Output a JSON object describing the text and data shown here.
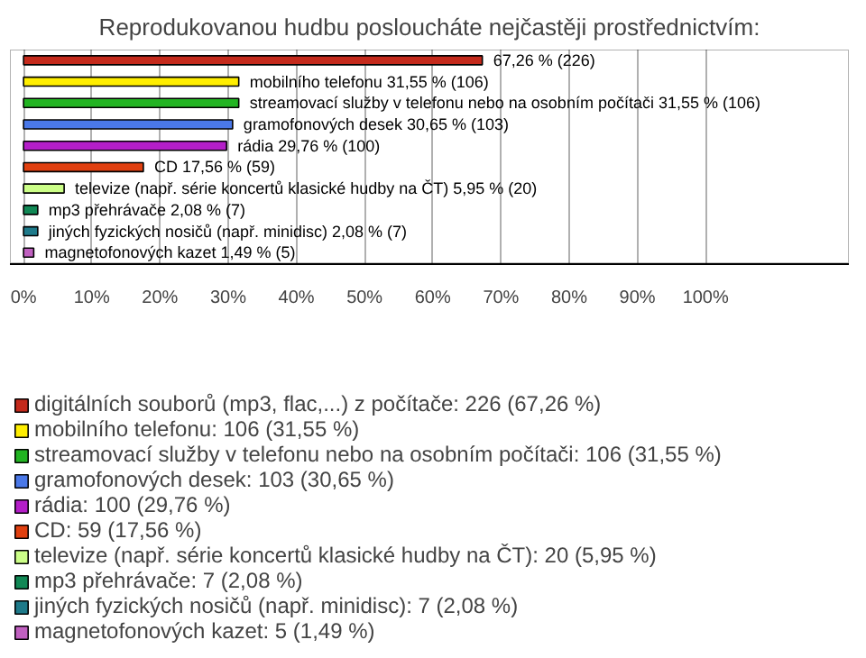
{
  "chart_data": {
    "type": "bar",
    "orientation": "horizontal",
    "title": "Reprodukovanou hudbu posloucháte nejčastěji prostřednictvím:",
    "categories": [
      null,
      null,
      null,
      null,
      null,
      null,
      null,
      null,
      null,
      null
    ],
    "series": [
      {
        "name": "digitálních souborů (mp3, flac,...) z počítače: 226 (67,26 %)",
        "color": "#c42a1c",
        "values": [
          67.26,
          null,
          null,
          null,
          null,
          null,
          null,
          null,
          null,
          null
        ],
        "value_labels": [
          "67,26 % (226)",
          null,
          null,
          null,
          null,
          null,
          null,
          null,
          null,
          null
        ]
      },
      {
        "name": "mobilního telefonu: 106 (31,55 %)",
        "color": "#ffee00",
        "values": [
          null,
          31.55,
          null,
          null,
          null,
          null,
          null,
          null,
          null,
          null
        ],
        "value_labels": [
          null,
          "mobilního telefonu 31,55 % (106)",
          null,
          null,
          null,
          null,
          null,
          null,
          null,
          null
        ]
      },
      {
        "name": "streamovací služby v telefonu nebo na osobním počítači: 106 (31,55 %)",
        "color": "#22b422",
        "values": [
          null,
          null,
          31.55,
          null,
          null,
          null,
          null,
          null,
          null,
          null
        ],
        "value_labels": [
          null,
          null,
          "streamovací služby v telefonu nebo na osobním počítači 31,55 % (106)",
          null,
          null,
          null,
          null,
          null,
          null,
          null
        ]
      },
      {
        "name": "gramofonových desek: 103 (30,65 %)",
        "color": "#4a78e8",
        "values": [
          null,
          null,
          null,
          30.65,
          null,
          null,
          null,
          null,
          null,
          null
        ],
        "value_labels": [
          null,
          null,
          null,
          "gramofonových desek 30,65 % (103)",
          null,
          null,
          null,
          null,
          null,
          null
        ]
      },
      {
        "name": "rádia: 100 (29,76 %)",
        "color": "#b41ec8",
        "values": [
          null,
          null,
          null,
          null,
          29.76,
          null,
          null,
          null,
          null,
          null
        ],
        "value_labels": [
          null,
          null,
          null,
          null,
          "rádia 29,76 % (100)",
          null,
          null,
          null,
          null,
          null
        ]
      },
      {
        "name": "CD: 59 (17,56 %)",
        "color": "#e04010",
        "values": [
          null,
          null,
          null,
          null,
          null,
          17.56,
          null,
          null,
          null,
          null
        ],
        "value_labels": [
          null,
          null,
          null,
          null,
          null,
          "CD 17,56 % (59)",
          null,
          null,
          null,
          null
        ]
      },
      {
        "name": "televize (např. série koncertů klasické hudby na ČT): 20 (5,95 %)",
        "color": "#ccff88",
        "values": [
          null,
          null,
          null,
          null,
          null,
          null,
          5.95,
          null,
          null,
          null
        ],
        "value_labels": [
          null,
          null,
          null,
          null,
          null,
          null,
          "televize (např. série koncertů klasické hudby na ČT) 5,95 % (20)",
          null,
          null,
          null
        ]
      },
      {
        "name": "mp3 přehrávače: 7 (2,08 %)",
        "color": "#118855",
        "values": [
          null,
          null,
          null,
          null,
          null,
          null,
          null,
          2.08,
          null,
          null
        ],
        "value_labels": [
          null,
          null,
          null,
          null,
          null,
          null,
          null,
          "mp3 přehrávače 2,08 % (7)",
          null,
          null
        ]
      },
      {
        "name": "jiných fyzických nosičů (např. minidisc): 7 (2,08 %)",
        "color": "#1e7a8a",
        "values": [
          null,
          null,
          null,
          null,
          null,
          null,
          null,
          null,
          2.08,
          null
        ],
        "value_labels": [
          null,
          null,
          null,
          null,
          null,
          null,
          null,
          null,
          "jiných fyzických nosičů (např. minidisc) 2,08 % (7)",
          null
        ]
      },
      {
        "name": "magnetofonových kazet: 5 (1,49 %)",
        "color": "#c060c0",
        "values": [
          null,
          null,
          null,
          null,
          null,
          null,
          null,
          null,
          null,
          1.49
        ],
        "value_labels": [
          null,
          null,
          null,
          null,
          null,
          null,
          null,
          null,
          null,
          "magnetofonových kazet 1,49 % (5)"
        ]
      }
    ],
    "xlim": [
      -2,
      121
    ],
    "xticks": [
      {
        "value": 0,
        "label": "0%"
      },
      {
        "value": 10,
        "label": "10%"
      },
      {
        "value": 20,
        "label": "20%"
      },
      {
        "value": 30,
        "label": "30%"
      },
      {
        "value": 40,
        "label": "40%"
      },
      {
        "value": 50,
        "label": "50%"
      },
      {
        "value": 60,
        "label": "60%"
      },
      {
        "value": 70,
        "label": "70%"
      },
      {
        "value": 80,
        "label": "80%"
      },
      {
        "value": 90,
        "label": "90%"
      },
      {
        "value": 100,
        "label": "100%"
      }
    ],
    "grid": "x",
    "legend": "bottom",
    "tick_labels": "x"
  }
}
